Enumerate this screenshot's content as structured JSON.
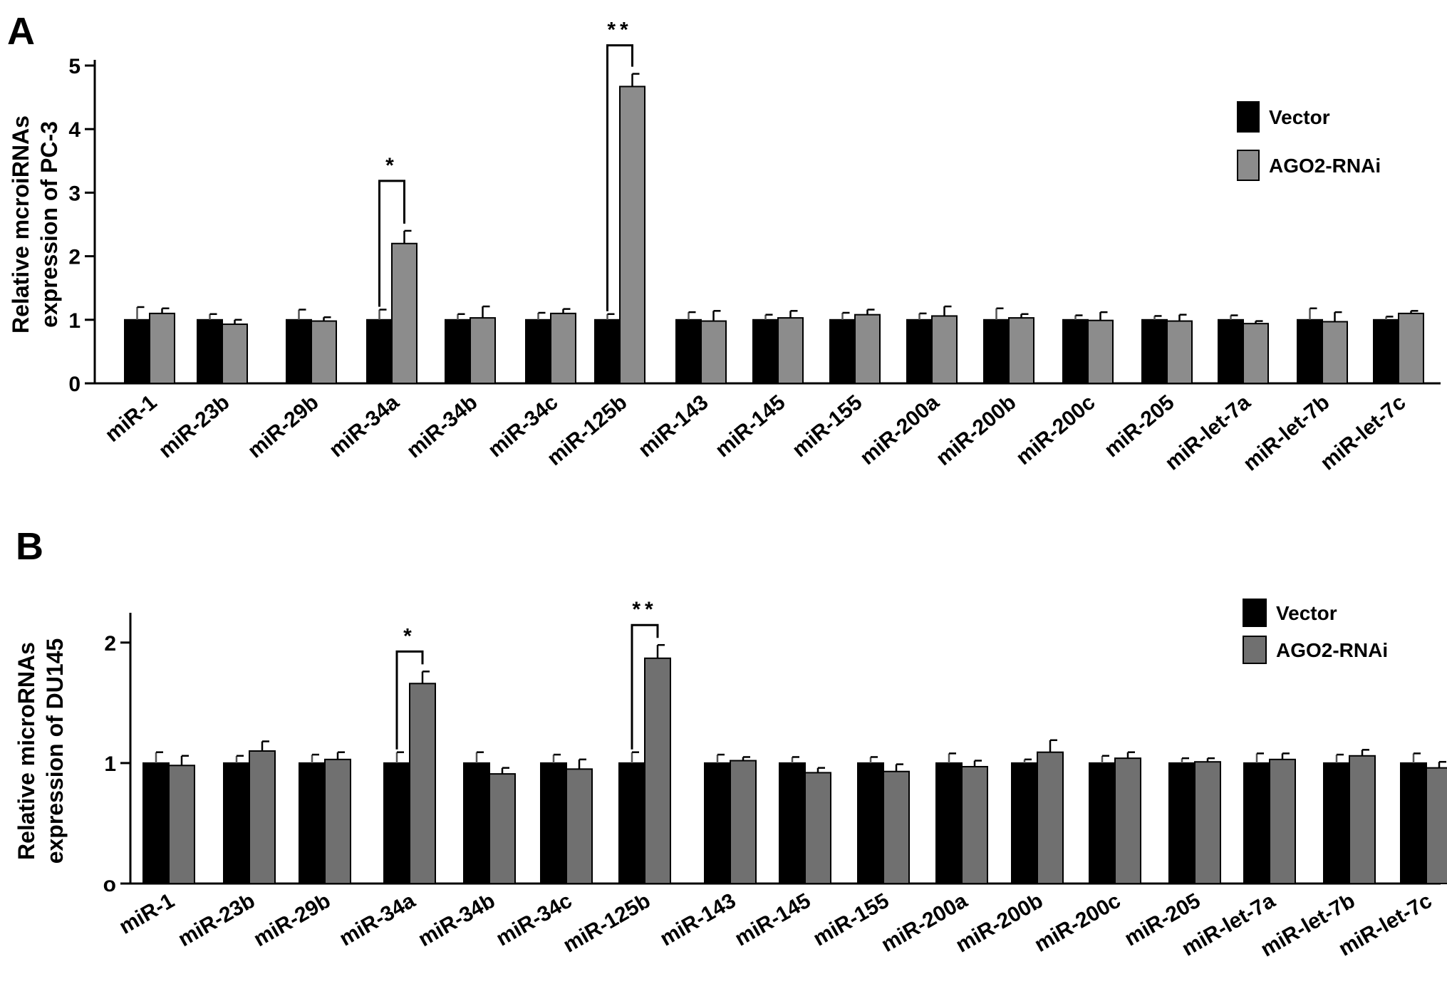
{
  "chart_data": [
    {
      "type": "bar",
      "panel": "A",
      "ylabel_lines": [
        "Relative mcroiRNAs",
        "expression of PC-3"
      ],
      "ylim": [
        0,
        5
      ],
      "yticks": [
        "0",
        "1",
        "2",
        "3",
        "4",
        "5"
      ],
      "categories": [
        "miR-1",
        "miR-23b",
        "miR-29b",
        "miR-34a",
        "miR-34b",
        "miR-34c",
        "miR-125b",
        "miR-143",
        "miR-145",
        "miR-155",
        "miR-200a",
        "miR-200b",
        "miR-200c",
        "miR-205",
        "miR-let-7a",
        "miR-let-7b",
        "miR-let-7c"
      ],
      "series": [
        {
          "name": "Vector",
          "color": "#000000",
          "values": [
            1.0,
            1.0,
            1.0,
            1.0,
            1.0,
            1.0,
            1.0,
            1.0,
            1.0,
            1.0,
            1.0,
            1.0,
            1.0,
            1.0,
            1.0,
            1.0,
            1.0
          ],
          "errors": [
            0.2,
            0.09,
            0.16,
            0.16,
            0.09,
            0.11,
            0.09,
            0.12,
            0.08,
            0.11,
            0.1,
            0.18,
            0.07,
            0.06,
            0.07,
            0.18,
            0.05
          ]
        },
        {
          "name": "AGO2-RNAi",
          "color": "#8c8c8c",
          "values": [
            1.1,
            0.93,
            0.98,
            2.2,
            1.03,
            1.1,
            4.67,
            0.98,
            1.03,
            1.08,
            1.06,
            1.03,
            0.99,
            0.98,
            0.94,
            0.97,
            1.1
          ],
          "errors": [
            0.08,
            0.07,
            0.06,
            0.2,
            0.18,
            0.07,
            0.2,
            0.16,
            0.11,
            0.08,
            0.15,
            0.06,
            0.13,
            0.1,
            0.04,
            0.15,
            0.04
          ]
        }
      ],
      "significance": [
        {
          "category": "miR-34a",
          "label": "*"
        },
        {
          "category": "miR-125b",
          "label": "**"
        }
      ]
    },
    {
      "type": "bar",
      "panel": "B",
      "ylabel_lines": [
        "Relative microRNAs",
        "expression of DU145"
      ],
      "ylim": [
        0,
        2.2
      ],
      "yticks": [
        "o",
        "1",
        "2"
      ],
      "categories": [
        "miR-1",
        "miR-23b",
        "miR-29b",
        "miR-34a",
        "miR-34b",
        "miR-34c",
        "miR-125b",
        "miR-143",
        "miR-145",
        "miR-155",
        "miR-200a",
        "miR-200b",
        "miR-200c",
        "miR-205",
        "miR-let-7a",
        "miR-let-7b",
        "miR-let-7c"
      ],
      "series": [
        {
          "name": "Vector",
          "color": "#000000",
          "values": [
            1.0,
            1.0,
            1.0,
            1.0,
            1.0,
            1.0,
            1.0,
            1.0,
            1.0,
            1.0,
            1.0,
            1.0,
            1.0,
            1.0,
            1.0,
            1.0,
            1.0
          ],
          "errors": [
            0.09,
            0.06,
            0.07,
            0.09,
            0.09,
            0.07,
            0.09,
            0.07,
            0.05,
            0.05,
            0.08,
            0.03,
            0.06,
            0.04,
            0.08,
            0.07,
            0.08
          ]
        },
        {
          "name": "AGO2-RNAi",
          "color": "#707070",
          "values": [
            0.98,
            1.1,
            1.03,
            1.66,
            0.91,
            0.95,
            1.87,
            1.02,
            0.92,
            0.93,
            0.97,
            1.09,
            1.04,
            1.01,
            1.03,
            1.06,
            0.96
          ],
          "errors": [
            0.08,
            0.08,
            0.06,
            0.1,
            0.05,
            0.08,
            0.11,
            0.03,
            0.04,
            0.06,
            0.05,
            0.1,
            0.05,
            0.03,
            0.05,
            0.05,
            0.05
          ]
        }
      ],
      "significance": [
        {
          "category": "miR-34a",
          "label": "*"
        },
        {
          "category": "miR-125b",
          "label": "**"
        }
      ]
    }
  ]
}
